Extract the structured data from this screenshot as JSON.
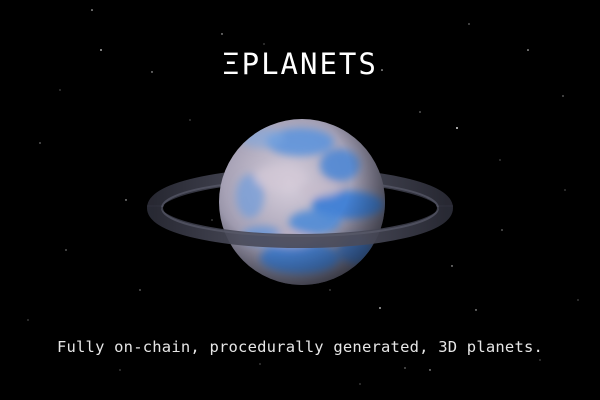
{
  "brand": {
    "logo_text": "ΞPLANETS"
  },
  "tagline": "Fully on-chain, procedurally generated, 3D planets.",
  "colors": {
    "background": "#000000",
    "ocean_blue": "#4a86d6",
    "cloud_lavender": "#b9aebd",
    "ring": "#3c3d4a",
    "text": "#ffffff"
  },
  "icons": {
    "logo_glyph": "ethereum-xi-icon"
  }
}
